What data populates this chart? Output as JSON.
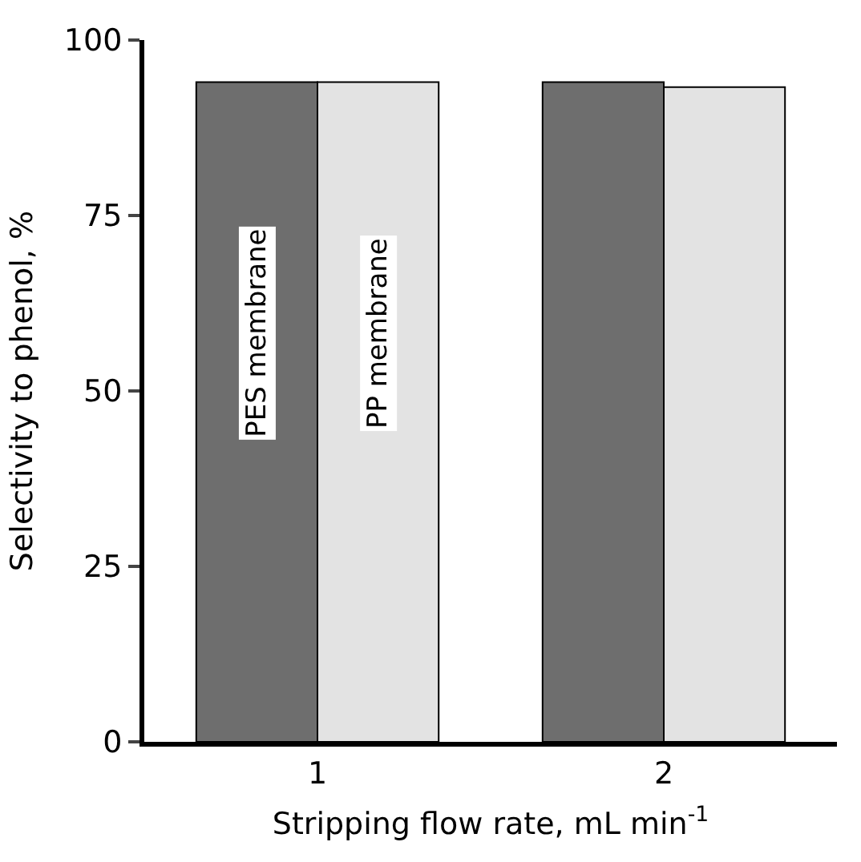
{
  "chart_data": {
    "type": "bar",
    "xlabel": "Stripping flow rate, mL min$^{-1}$",
    "ylabel": "Selectivity to phenol, %",
    "categories": [
      "1",
      "2"
    ],
    "series": [
      {
        "name": "PES membrane",
        "color": "#6e6e6e",
        "values": [
          94,
          94
        ]
      },
      {
        "name": "PP membrane",
        "color": "#e3e3e3",
        "values": [
          94,
          93.3
        ]
      }
    ],
    "ylim": [
      0,
      100
    ],
    "yticks": [
      0,
      25,
      50,
      75,
      100
    ]
  }
}
